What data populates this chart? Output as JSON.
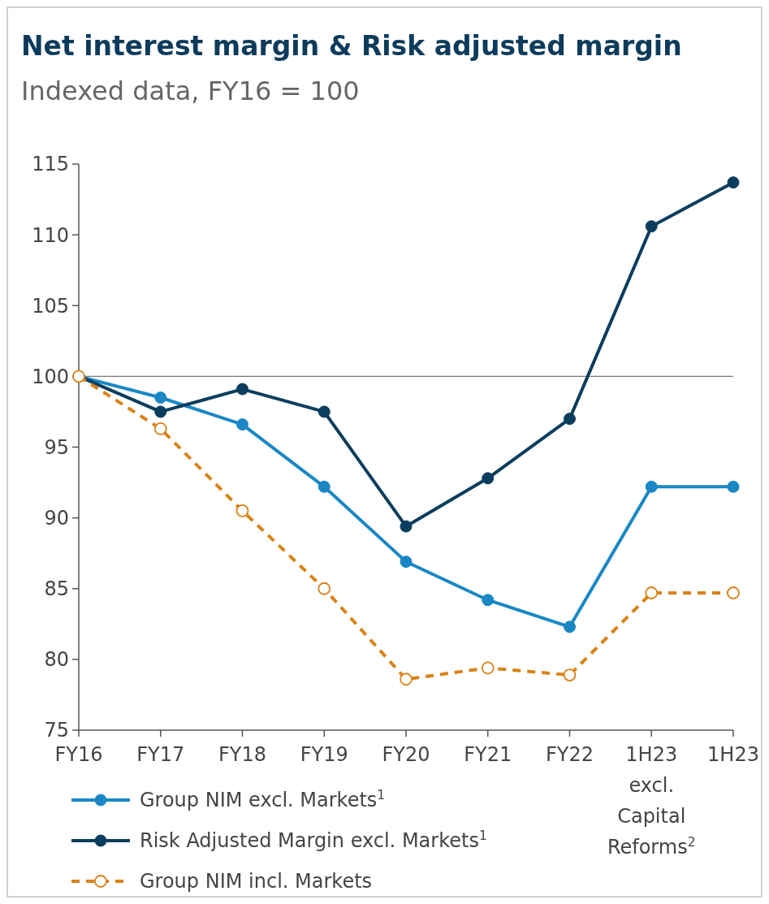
{
  "chart_data": {
    "type": "line",
    "title": "Net interest margin & Risk adjusted margin",
    "subtitle": "Indexed data, FY16 = 100",
    "categories": [
      "FY16",
      "FY17",
      "FY18",
      "FY19",
      "FY20",
      "FY21",
      "FY22",
      "1H23 excl. Capital Reforms$^{2}$",
      "1H23"
    ],
    "series": [
      {
        "name": "Group NIM excl. Markets$^{1}$",
        "color": "#1a87c4",
        "line_style": "solid",
        "values": [
          100,
          98.5,
          96.6,
          92.2,
          86.9,
          84.2,
          82.3,
          92.2,
          92.2
        ]
      },
      {
        "name": "Risk Adjusted Margin excl. Markets$^{1}$",
        "color": "#0b3d5e",
        "line_style": "solid",
        "values": [
          100,
          97.5,
          99.1,
          97.5,
          89.4,
          92.8,
          97.0,
          110.6,
          113.7
        ]
      },
      {
        "name": "Group NIM incl. Markets",
        "color": "#d98218",
        "line_style": "dashed",
        "values": [
          100,
          96.3,
          90.5,
          85.0,
          78.6,
          79.4,
          78.9,
          84.7,
          84.7
        ]
      }
    ],
    "ylim": [
      75,
      115
    ],
    "yticks": [
      75,
      80,
      85,
      90,
      95,
      100,
      105,
      110,
      115
    ],
    "ref_lines": [
      {
        "axis": "y",
        "value": 100,
        "color": "#777777"
      }
    ],
    "marker": "circle",
    "grid": false,
    "legend": "bottom"
  }
}
